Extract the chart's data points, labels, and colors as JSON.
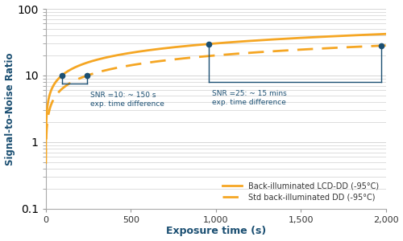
{
  "xlabel": "Exposure time (s)",
  "ylabel": "Signal-to-Noise Ratio",
  "xlim": [
    0,
    2000
  ],
  "ylim_log": [
    0.1,
    100
  ],
  "xticks": [
    0,
    500,
    1000,
    1500,
    2000
  ],
  "xtick_labels": [
    "0",
    "500",
    "1,000",
    "1,500",
    "2,000"
  ],
  "grid_color": "#d0d0d0",
  "line_color_solid": "#f5a623",
  "line_color_dashed": "#f5a623",
  "annotation_color": "#1b4f72",
  "dot_color": "#1b4f72",
  "legend_solid": "Back-illuminated LCD-DD (-95°C)",
  "legend_dashed": "Std back-illuminated DD (-95°C)",
  "ann1_text": "SNR =10: ~ 150 s\nexp. time difference",
  "ann2_text": "SNR =25: ~ 15 mins\nexp. time difference",
  "snr10_x_solid": 95,
  "snr10_x_dashed": 245,
  "snr25_x_solid": 960,
  "snr25_x_dashed": 1975,
  "solid_scale": 200,
  "solid_power": 0.38,
  "dashed_scale": 110,
  "dashed_power": 0.38,
  "solid_sat": 42,
  "dashed_sat": 28,
  "solid_tc": 18,
  "dashed_tc": 45
}
